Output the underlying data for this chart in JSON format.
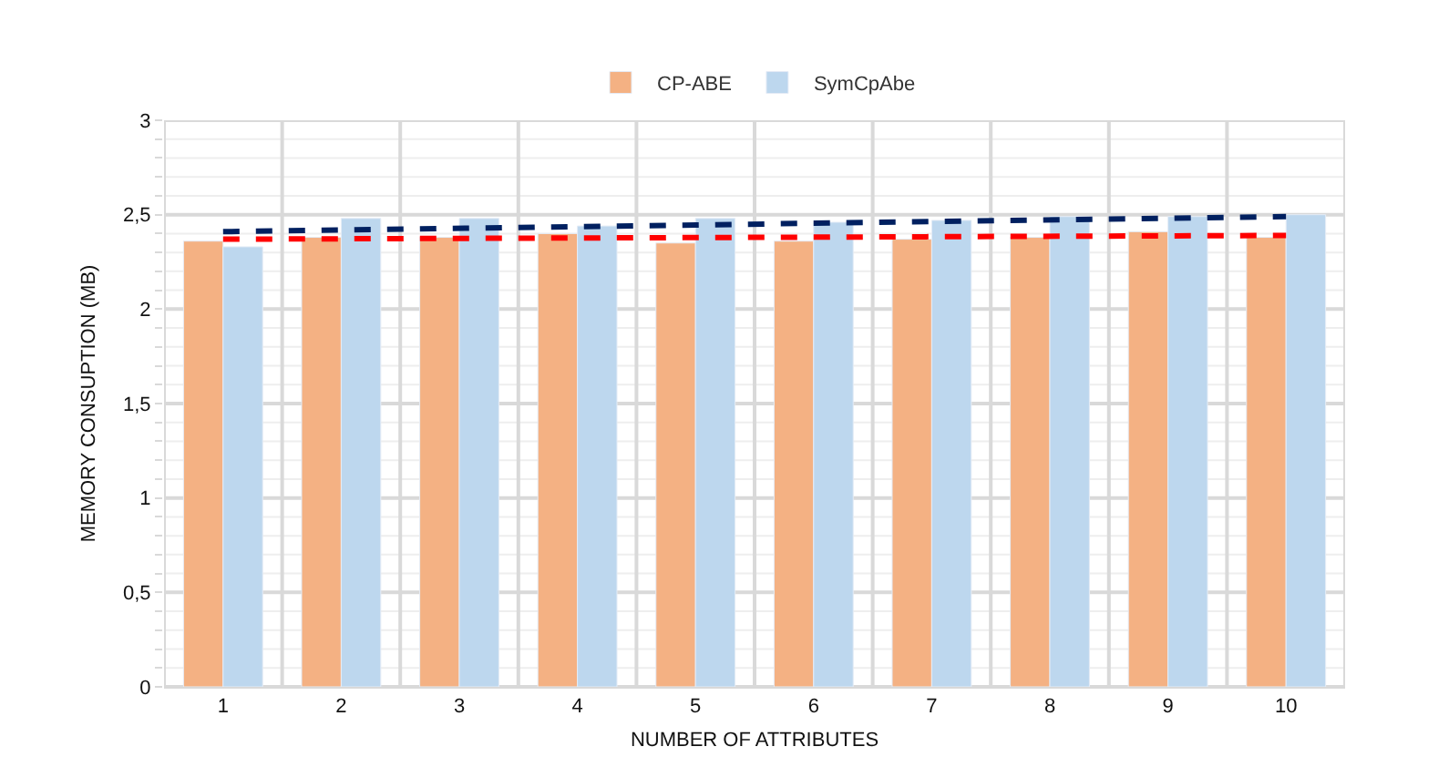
{
  "chart_data": {
    "type": "bar",
    "xlabel": "NUMBER OF ATTRIBUTES",
    "ylabel": "MEMORY CONSUPTION (MB)",
    "categories": [
      "1",
      "2",
      "3",
      "4",
      "5",
      "6",
      "7",
      "8",
      "9",
      "10"
    ],
    "series": [
      {
        "name": "CP-ABE",
        "color": "#f4b183",
        "values": [
          2.36,
          2.38,
          2.38,
          2.4,
          2.35,
          2.36,
          2.37,
          2.38,
          2.41,
          2.38
        ]
      },
      {
        "name": "SymCpAbe",
        "color": "#bdd7ee",
        "values": [
          2.33,
          2.48,
          2.48,
          2.44,
          2.48,
          2.46,
          2.47,
          2.49,
          2.49,
          2.5
        ]
      },
      {
        "type": "line",
        "color": "#002060",
        "line_style": "dashed",
        "x": [
          "1",
          "10"
        ],
        "values": [
          2.41,
          2.49
        ]
      },
      {
        "type": "line",
        "color": "#ff0000",
        "line_style": "dashed",
        "x": [
          "1",
          "10"
        ],
        "values": [
          2.37,
          2.39
        ]
      }
    ],
    "ylim": [
      0,
      3
    ],
    "yticks": [
      0,
      {
        "value": 0.1,
        "label": null
      },
      {
        "value": 0.2,
        "label": null
      },
      {
        "value": 0.3,
        "label": null
      },
      {
        "value": 0.4,
        "label": null
      },
      {
        "value": 0.5,
        "label": "0,5"
      },
      {
        "value": 0.6,
        "label": null
      },
      {
        "value": 0.7,
        "label": null
      },
      {
        "value": 0.8,
        "label": null
      },
      {
        "value": 0.9,
        "label": null
      },
      1,
      {
        "value": 1.1,
        "label": null
      },
      {
        "value": 1.2,
        "label": null
      },
      {
        "value": 1.3,
        "label": null
      },
      {
        "value": 1.4,
        "label": null
      },
      {
        "value": 1.5,
        "label": "1,5"
      },
      {
        "value": 1.6,
        "label": null
      },
      {
        "value": 1.7,
        "label": null
      },
      {
        "value": 1.8,
        "label": null
      },
      {
        "value": 1.9,
        "label": null
      },
      2,
      {
        "value": 2.1,
        "label": null
      },
      {
        "value": 2.2,
        "label": null
      },
      {
        "value": 2.3,
        "label": null
      },
      {
        "value": 2.4,
        "label": null
      },
      {
        "value": 2.5,
        "label": "2,5"
      },
      {
        "value": 2.6,
        "label": null
      },
      {
        "value": 2.7,
        "label": null
      },
      {
        "value": 2.8,
        "label": null
      },
      {
        "value": 2.9,
        "label": null
      },
      3
    ],
    "grid": true,
    "legend": "top"
  }
}
